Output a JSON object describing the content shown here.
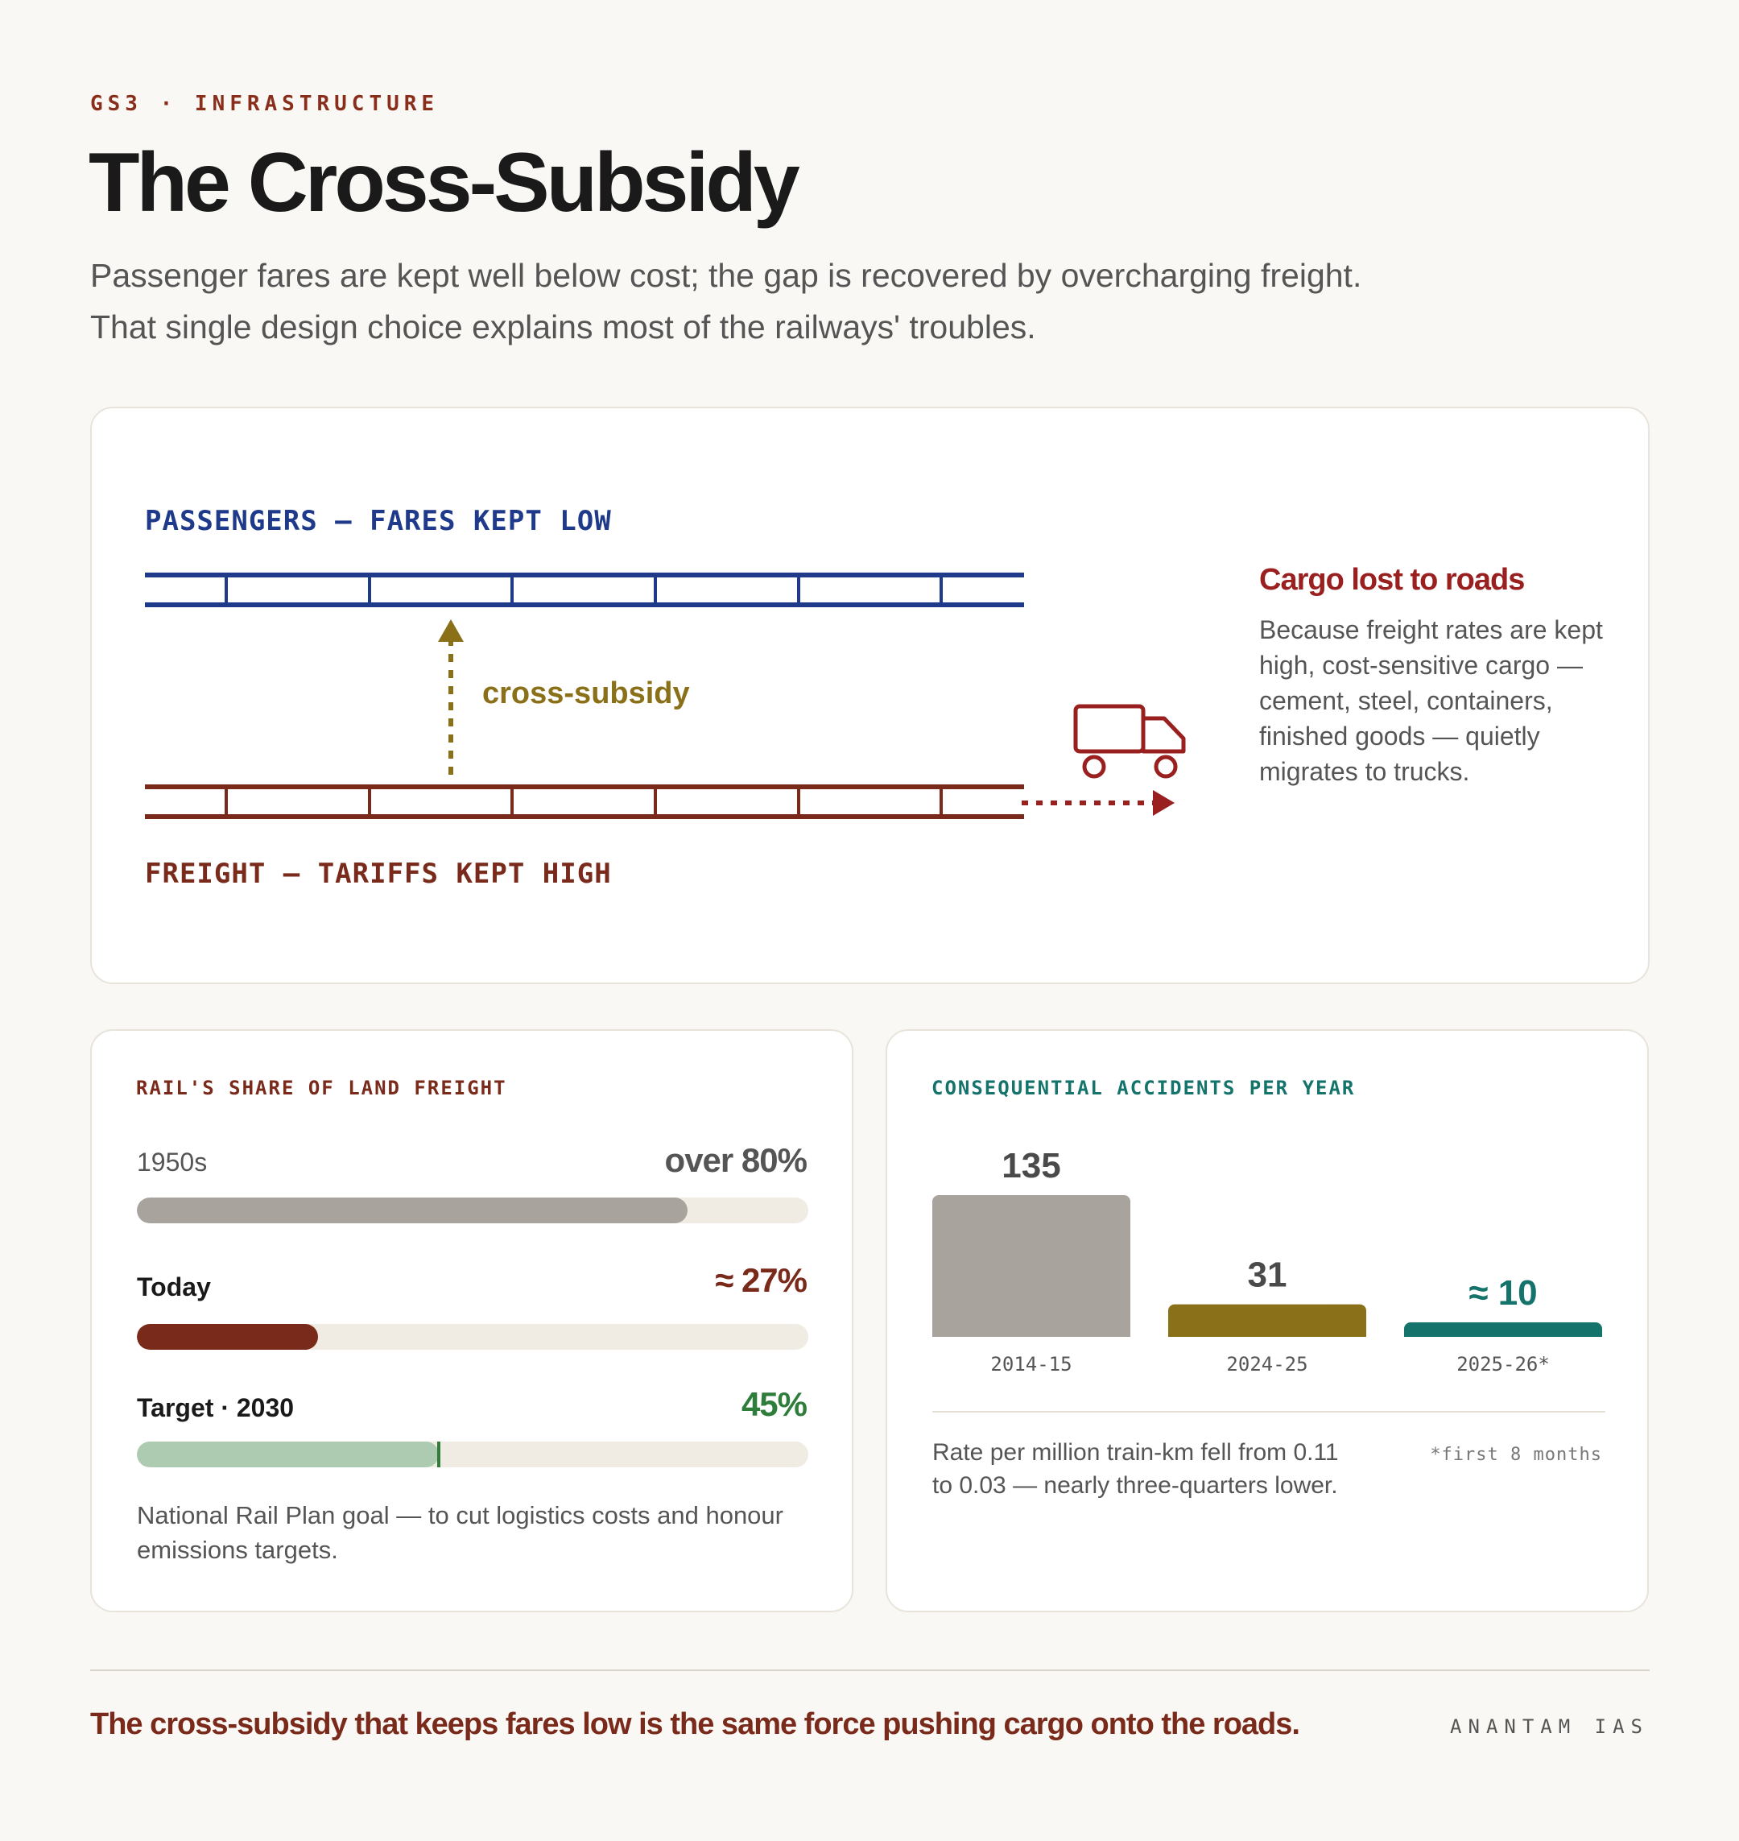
{
  "header": {
    "eyebrow": "GS3 · INFRASTRUCTURE",
    "title": "The Cross-Subsidy",
    "subtitle_line1": "Passenger fares are kept well below cost; the gap is recovered by overcharging freight.",
    "subtitle_line2": "That single design choice explains most of the railways' troubles."
  },
  "diagram": {
    "passengers_label": "PASSENGERS — FARES KEPT LOW",
    "freight_label": "FREIGHT — TARIFFS KEPT HIGH",
    "arrow_label": "cross-subsidy",
    "cargo_title": "Cargo lost to roads",
    "cargo_text": "Because freight rates are kept high, cost-sensitive cargo — cement, steel, containers, finished goods — quietly migrates to trucks.",
    "colors": {
      "passenger": "#1f3a8a",
      "freight": "#7a2a1a",
      "subsidy": "#8a7018",
      "truck": "#9a1f1f"
    }
  },
  "freight_share": {
    "heading": "RAIL'S SHARE OF LAND FREIGHT",
    "rows": [
      {
        "label": "1950s",
        "value_text": "over 80%",
        "percent": 82,
        "color": "#a8a39c",
        "value_color": "#555555"
      },
      {
        "label": "Today",
        "value_text": "≈ 27%",
        "percent": 27,
        "color": "#7a2a1a",
        "value_color": "#7a2a1a"
      },
      {
        "label": "Target · 2030",
        "value_text": "45%",
        "percent": 45,
        "color": "#adcbb0",
        "value_color": "#2e7d3a"
      }
    ],
    "note": "National Rail Plan goal — to cut logistics costs and honour emissions targets."
  },
  "chart_data": {
    "type": "bar",
    "title": "CONSEQUENTIAL ACCIDENTS PER YEAR",
    "categories": [
      "2014-15",
      "2024-25",
      "2025-26*"
    ],
    "values": [
      135,
      31,
      10
    ],
    "value_labels": [
      "135",
      "31",
      "≈ 10"
    ],
    "colors": [
      "#a8a39c",
      "#8a7018",
      "#14736a"
    ],
    "label_colors": [
      "#4a4a4a",
      "#4a4a4a",
      "#14736a"
    ],
    "ylim": [
      0,
      135
    ],
    "note": "Rate per million train-km fell from 0.11 to 0.03 — nearly three-quarters lower.",
    "footnote": "*first 8 months"
  },
  "footer": {
    "tagline": "The cross-subsidy that keeps fares low is the same force pushing cargo onto the roads.",
    "brand": "ANANTAM IAS"
  }
}
